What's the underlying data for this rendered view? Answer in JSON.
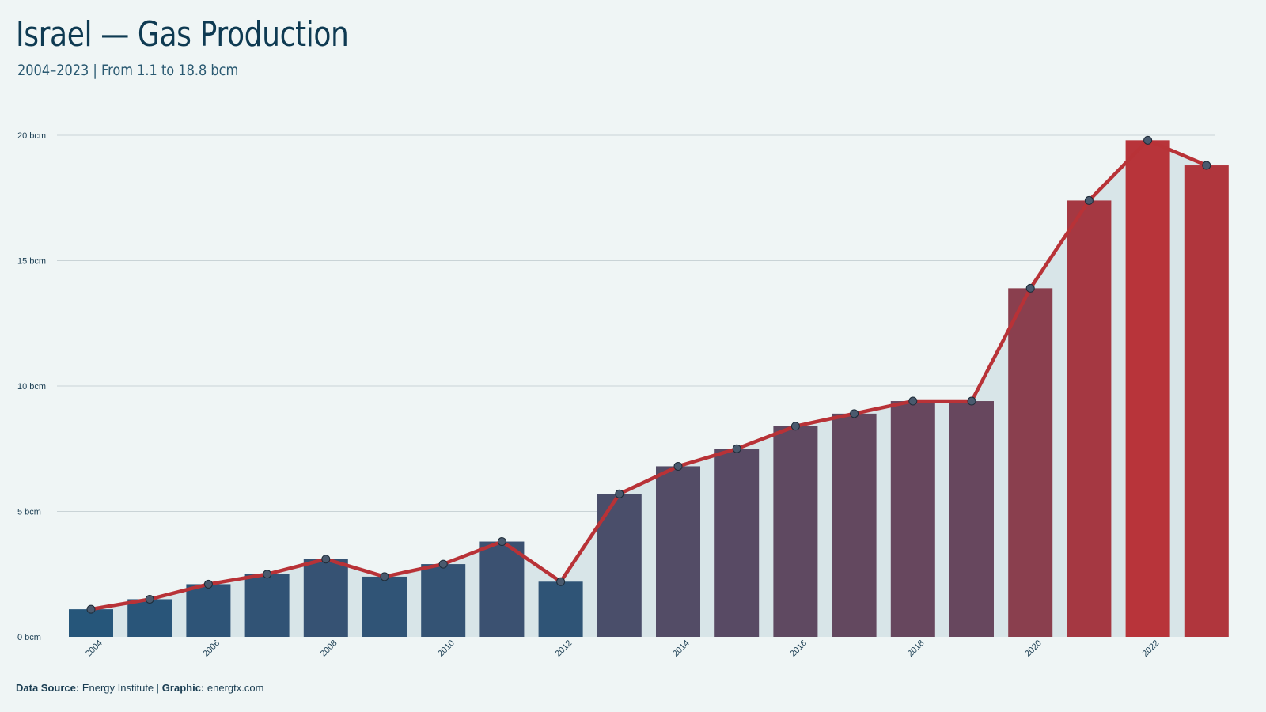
{
  "header": {
    "title": "Israel — Gas Production",
    "subtitle": "2004–2023 | From 1.1 to 18.8 bcm"
  },
  "footer": {
    "source_label": "Data Source:",
    "source_value": "Energy Institute",
    "separator": "|",
    "graphic_label": "Graphic:",
    "graphic_value": "energtx.com"
  },
  "colors": {
    "background": "#eff5f5",
    "bar_low": "#26567a",
    "bar_high": "#b8343a",
    "line": "#b83237",
    "point": "#4a5a6e",
    "area": "#d8e5e8",
    "grid": "#c9d3d6"
  },
  "chart_data": {
    "type": "bar",
    "x": [
      2004,
      2005,
      2006,
      2007,
      2008,
      2009,
      2010,
      2011,
      2012,
      2013,
      2014,
      2015,
      2016,
      2017,
      2018,
      2019,
      2020,
      2021,
      2022,
      2023
    ],
    "values": [
      1.1,
      1.5,
      2.1,
      2.5,
      3.1,
      2.4,
      2.9,
      3.8,
      2.2,
      5.7,
      6.8,
      7.5,
      8.4,
      8.9,
      9.4,
      9.4,
      13.9,
      17.4,
      19.8,
      18.8
    ],
    "ylim": [
      0,
      20
    ],
    "yticks": [
      0,
      5,
      10,
      15,
      20
    ],
    "ytick_labels": [
      "0 bcm",
      "5 bcm",
      "10 bcm",
      "15 bcm",
      "20 bcm"
    ],
    "xtick_labels": [
      "2004",
      "2006",
      "2008",
      "2010",
      "2012",
      "2014",
      "2016",
      "2018",
      "2020",
      "2022"
    ],
    "overlay": "line with markers and shaded area",
    "grid": true,
    "legend": "none"
  }
}
